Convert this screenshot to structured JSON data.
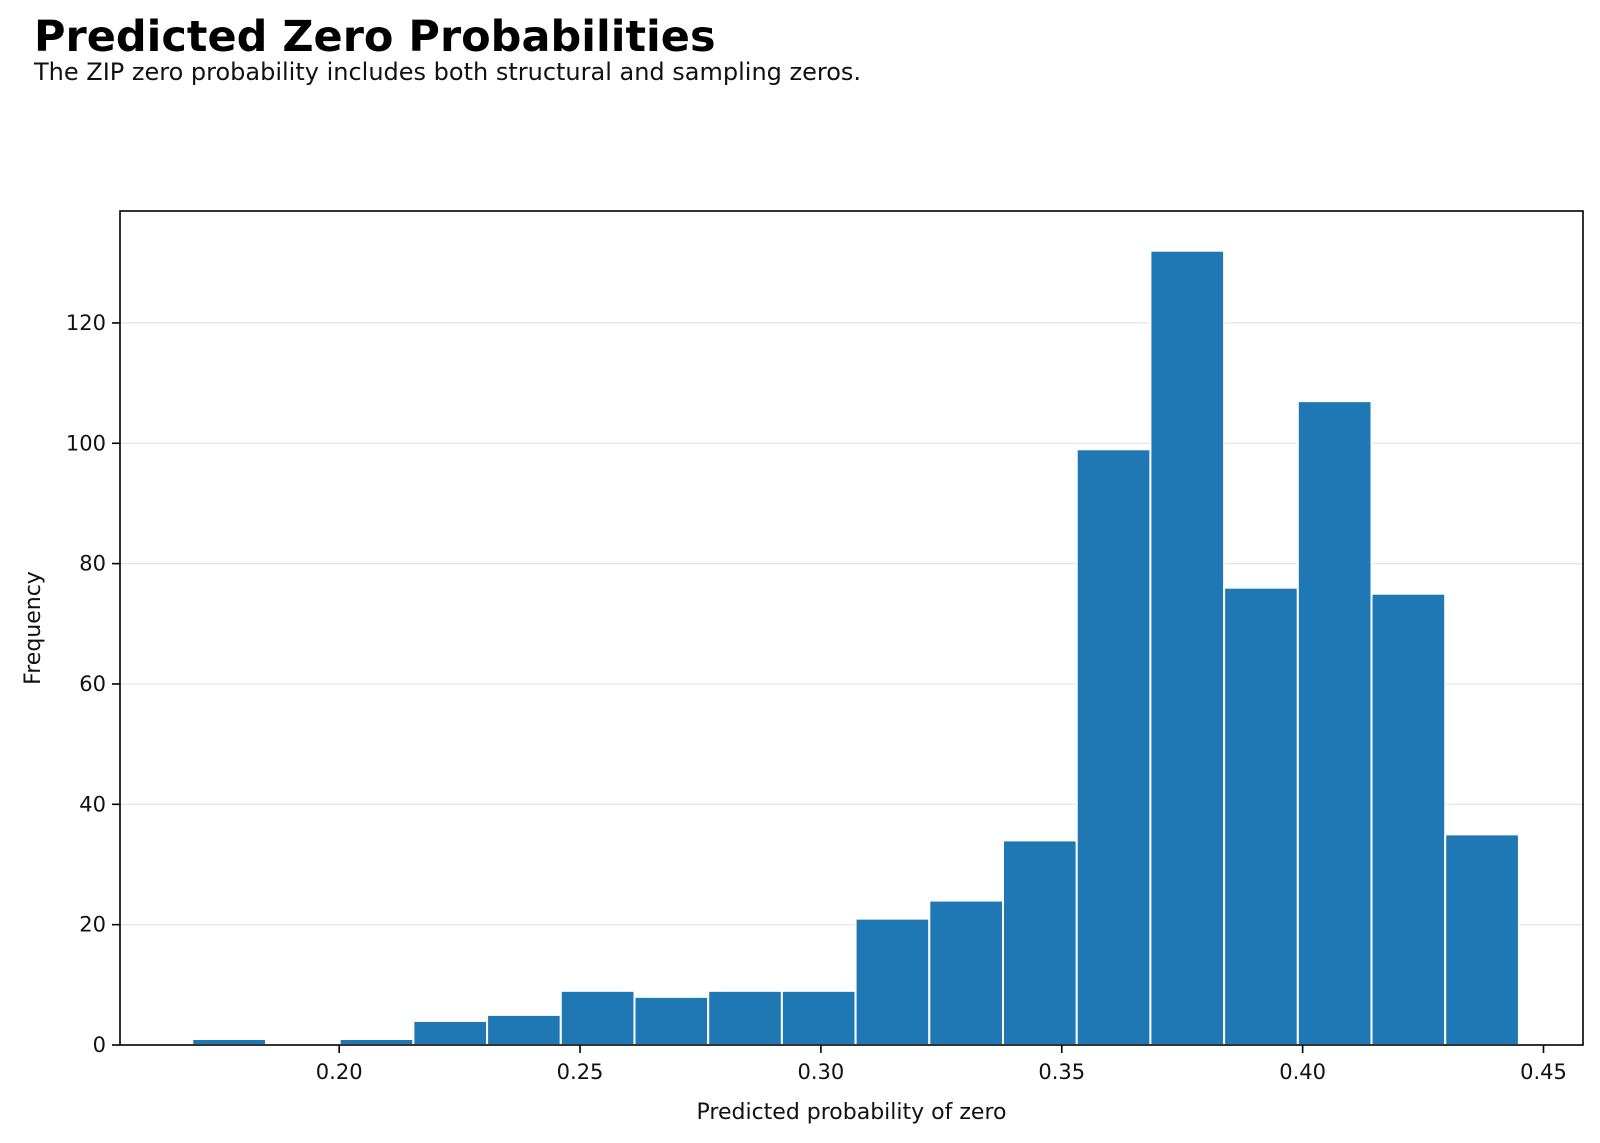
{
  "header": {
    "title": "Predicted Zero Probabilities",
    "subtitle": "The ZIP zero probability includes both structural and sampling zeros."
  },
  "chart_data": {
    "type": "bar",
    "histogram": true,
    "title": "Predicted Zero Probabilities",
    "subtitle": "The ZIP zero probability includes both structural and sampling zeros.",
    "xlabel": "Predicted probability of zero",
    "ylabel": "Frequency",
    "xlim": [
      0.1545,
      0.4582
    ],
    "ylim": [
      0,
      138.6
    ],
    "xticks": [
      0.2,
      0.25,
      0.3,
      0.35,
      0.4,
      0.45
    ],
    "xtick_labels": [
      "0.20",
      "0.25",
      "0.30",
      "0.35",
      "0.40",
      "0.45"
    ],
    "yticks": [
      0,
      20,
      40,
      60,
      80,
      100,
      120
    ],
    "ytick_labels": [
      "0",
      "20",
      "40",
      "60",
      "80",
      "100",
      "120"
    ],
    "grid": "y",
    "bin_edges": [
      0.1695,
      0.1848,
      0.2001,
      0.2154,
      0.2307,
      0.246,
      0.2613,
      0.2766,
      0.2919,
      0.3072,
      0.3225,
      0.3378,
      0.3531,
      0.3684,
      0.3837,
      0.399,
      0.4143,
      0.4296,
      0.4449
    ],
    "values": [
      1,
      0,
      1,
      4,
      5,
      9,
      8,
      9,
      9,
      21,
      24,
      34,
      99,
      132,
      76,
      107,
      75,
      35
    ],
    "bar_color": "#1f77b4",
    "edge_color": "#ffffff",
    "grid_color": "#e6e6e6"
  }
}
